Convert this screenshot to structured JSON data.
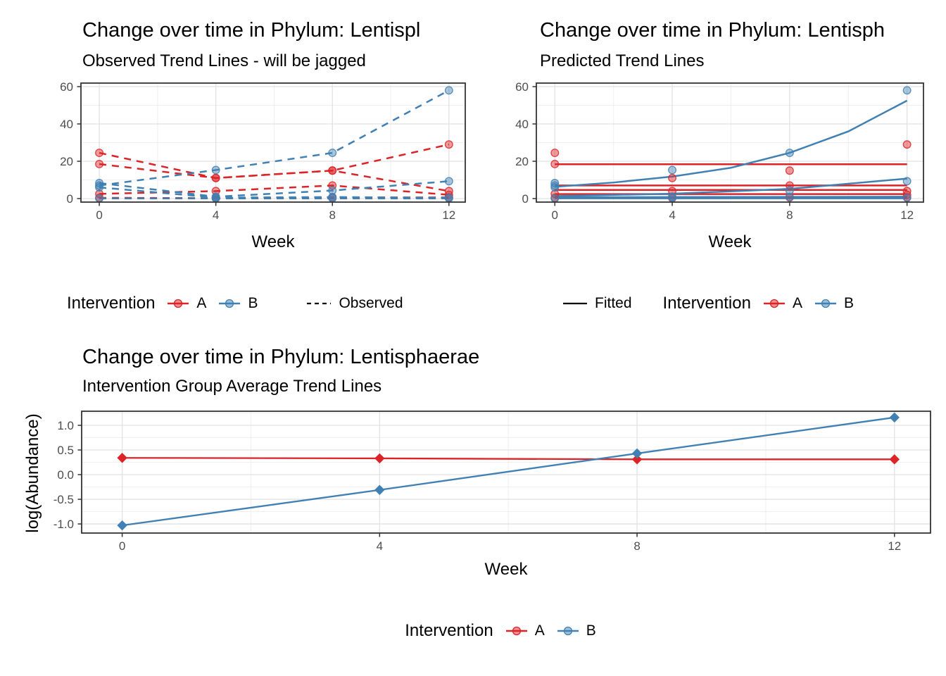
{
  "colors": {
    "A": "#DC2428",
    "B": "#4080B3",
    "grid_major": "#E2E2E2",
    "grid_minor": "#EFEFEF",
    "panel_border": "#333333",
    "tick": "#333333",
    "axis_text": "#4d4d4d"
  },
  "legends": {
    "observed": {
      "title": "Intervention",
      "item_a": "A",
      "item_b": "B",
      "linetype_label": "Observed"
    },
    "predicted": {
      "linetype_label": "Fitted",
      "title": "Intervention",
      "item_a": "A",
      "item_b": "B"
    },
    "average": {
      "title": "Intervention",
      "item_a": "A",
      "item_b": "B"
    }
  },
  "chart_data": [
    {
      "type": "line",
      "title": "Change over time in Phylum: Lentispl",
      "subtitle": "Observed Trend Lines - will be jagged",
      "xlabel": "Week",
      "ylabel": "",
      "xlim": [
        -0.63,
        12.56
      ],
      "ylim": [
        -1.9,
        61.9
      ],
      "x_ticks": [
        0,
        4,
        8,
        12
      ],
      "x_tick_labels": [
        "0",
        "4",
        "8",
        "12"
      ],
      "x_minor": [
        2,
        6,
        10
      ],
      "y_ticks": [
        0,
        20,
        40,
        60
      ],
      "y_tick_labels": [
        "0",
        "20",
        "40",
        "60"
      ],
      "y_minor": [
        10,
        30,
        50
      ],
      "series": [
        {
          "group": "A",
          "dash": true,
          "points": true,
          "values": [
            [
              0,
              24.5
            ],
            [
              4,
              11
            ],
            [
              8,
              15
            ],
            [
              12,
              29
            ]
          ]
        },
        {
          "group": "A",
          "dash": true,
          "points": true,
          "values": [
            [
              0,
              18.5
            ],
            [
              4,
              11
            ],
            [
              8,
              15
            ],
            [
              12,
              4
            ]
          ]
        },
        {
          "group": "A",
          "dash": true,
          "points": true,
          "values": [
            [
              0,
              2.5
            ],
            [
              4,
              4
            ],
            [
              8,
              7
            ],
            [
              12,
              2
            ]
          ]
        },
        {
          "group": "A",
          "dash": true,
          "points": true,
          "values": [
            [
              0,
              0.4
            ],
            [
              4,
              0.2
            ],
            [
              8,
              0.6
            ],
            [
              12,
              0.6
            ]
          ]
        },
        {
          "group": "B",
          "dash": true,
          "points": true,
          "values": [
            [
              0,
              7
            ],
            [
              4,
              15.3
            ],
            [
              8,
              24.5
            ],
            [
              12,
              58
            ]
          ]
        },
        {
          "group": "B",
          "dash": true,
          "points": true,
          "values": [
            [
              0,
              8.3
            ],
            [
              4,
              1
            ],
            [
              8,
              4.3
            ],
            [
              12,
              9.3
            ]
          ]
        },
        {
          "group": "B",
          "dash": true,
          "points": true,
          "values": [
            [
              0,
              6
            ],
            [
              4,
              0.5
            ],
            [
              8,
              0.8
            ],
            [
              12,
              0.4
            ]
          ]
        },
        {
          "group": "B",
          "dash": true,
          "points": true,
          "values": [
            [
              0,
              0.1
            ],
            [
              4,
              0.1
            ],
            [
              8,
              0.1
            ],
            [
              12,
              0.1
            ]
          ]
        }
      ]
    },
    {
      "type": "line",
      "title": "Change over time in Phylum: Lentisph",
      "subtitle": "Predicted Trend Lines",
      "xlabel": "Week",
      "ylabel": "",
      "xlim": [
        -0.63,
        12.56
      ],
      "ylim": [
        -1.9,
        61.9
      ],
      "x_ticks": [
        0,
        4,
        8,
        12
      ],
      "x_tick_labels": [
        "0",
        "4",
        "8",
        "12"
      ],
      "x_minor": [
        2,
        6,
        10
      ],
      "y_ticks": [
        0,
        20,
        40,
        60
      ],
      "y_tick_labels": [
        "0",
        "20",
        "40",
        "60"
      ],
      "y_minor": [
        10,
        30,
        50
      ],
      "series": [
        {
          "group": "A",
          "points": false,
          "values": [
            [
              0,
              18.4
            ],
            [
              12,
              18.4
            ]
          ]
        },
        {
          "group": "A",
          "points": false,
          "values": [
            [
              0,
              7
            ],
            [
              12,
              7
            ]
          ]
        },
        {
          "group": "A",
          "points": false,
          "values": [
            [
              0,
              4.6
            ],
            [
              12,
              4.6
            ]
          ]
        },
        {
          "group": "A",
          "points": false,
          "values": [
            [
              0,
              2.4
            ],
            [
              12,
              2.4
            ]
          ]
        },
        {
          "group": "B",
          "points": false,
          "values": [
            [
              0,
              6.3
            ],
            [
              2,
              8.6
            ],
            [
              4,
              11.8
            ],
            [
              6,
              16.5
            ],
            [
              8,
              24.5
            ],
            [
              10,
              36
            ],
            [
              12,
              52.5
            ]
          ]
        },
        {
          "group": "B",
          "points": false,
          "values": [
            [
              0,
              1.3
            ],
            [
              4,
              2.6
            ],
            [
              8,
              5.2
            ],
            [
              12,
              10.7
            ]
          ]
        },
        {
          "group": "B",
          "points": false,
          "values": [
            [
              0,
              0.7
            ],
            [
              4,
              0.78
            ],
            [
              8,
              0.88
            ],
            [
              12,
              1.0
            ]
          ]
        },
        {
          "group": "B",
          "points": false,
          "values": [
            [
              0,
              0.12
            ],
            [
              12,
              0.15
            ]
          ]
        },
        {
          "group": "A",
          "line": false,
          "points": true,
          "values": [
            [
              0,
              24.5
            ],
            [
              0,
              18.5
            ],
            [
              0,
              2.5
            ],
            [
              0,
              0.4
            ],
            [
              4,
              11
            ],
            [
              4,
              4
            ],
            [
              4,
              0.2
            ],
            [
              8,
              15
            ],
            [
              8,
              7
            ],
            [
              8,
              0.6
            ],
            [
              12,
              29
            ],
            [
              12,
              4
            ],
            [
              12,
              2
            ],
            [
              12,
              0.6
            ]
          ]
        },
        {
          "group": "B",
          "line": false,
          "points": true,
          "values": [
            [
              0,
              7
            ],
            [
              0,
              8.3
            ],
            [
              0,
              6
            ],
            [
              0,
              0.1
            ],
            [
              4,
              15.3
            ],
            [
              4,
              1
            ],
            [
              4,
              0.5
            ],
            [
              8,
              24.5
            ],
            [
              8,
              4.3
            ],
            [
              8,
              0.8
            ],
            [
              12,
              58
            ],
            [
              12,
              9.3
            ],
            [
              12,
              0.4
            ]
          ]
        }
      ]
    },
    {
      "type": "line",
      "title": "Change over time in Phylum: Lentisphaerae",
      "subtitle": "Intervention Group Average Trend Lines",
      "xlabel": "Week",
      "ylabel": "log(Abundance)",
      "xlim": [
        -0.63,
        12.56
      ],
      "ylim": [
        -1.185,
        1.286
      ],
      "x_ticks": [
        0,
        4,
        8,
        12
      ],
      "x_tick_labels": [
        "0",
        "4",
        "8",
        "12"
      ],
      "x_minor": [
        2,
        6,
        10
      ],
      "y_ticks": [
        1.0,
        0.5,
        0.0,
        -0.5,
        -1.0
      ],
      "y_tick_labels": [
        "1.0",
        "0.5",
        "0.0",
        "-0.5",
        "-1.0"
      ],
      "y_minor": [
        1.25,
        0.75,
        0.25,
        -0.25,
        -0.75
      ],
      "series": [
        {
          "group": "A",
          "points": true,
          "marker": "diamond",
          "width": 2.3,
          "values": [
            [
              0,
              0.34
            ],
            [
              4,
              0.33
            ],
            [
              8,
              0.31
            ],
            [
              12,
              0.31
            ]
          ]
        },
        {
          "group": "B",
          "points": true,
          "marker": "diamond",
          "width": 2.3,
          "values": [
            [
              0,
              -1.03
            ],
            [
              4,
              -0.31
            ],
            [
              8,
              0.43
            ],
            [
              12,
              1.16
            ]
          ]
        }
      ]
    }
  ]
}
